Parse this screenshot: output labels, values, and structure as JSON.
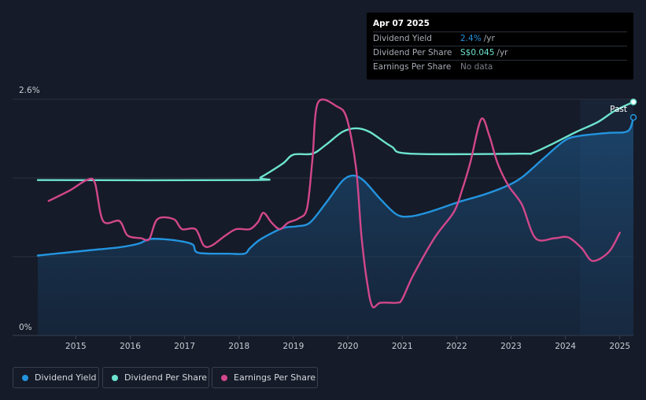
{
  "chart_data": {
    "type": "line",
    "title": "",
    "ylabel": "",
    "xlabel": "",
    "y_axis": {
      "top_label": "2.6%",
      "bottom_label": "0%",
      "ylim": [
        0,
        2.6
      ]
    },
    "x_ticks": [
      "2015",
      "2016",
      "2017",
      "2018",
      "2019",
      "2020",
      "2021",
      "2022",
      "2023",
      "2024",
      "2025"
    ],
    "x_range": [
      2014.3,
      2025.25
    ],
    "past_label": "Past",
    "forecast_region_start": 2024.27,
    "grid": true,
    "legend_position": "bottom-left",
    "series": [
      {
        "name": "Dividend Yield",
        "color": "#2394df",
        "filled": true,
        "unit": "%",
        "x": [
          2014.3,
          2014.8,
          2015.3,
          2015.8,
          2016.15,
          2016.35,
          2016.6,
          2016.9,
          2017.15,
          2017.25,
          2017.8,
          2018.1,
          2018.2,
          2018.4,
          2018.8,
          2019.05,
          2019.3,
          2019.6,
          2019.9,
          2020.1,
          2020.3,
          2020.6,
          2020.9,
          2021.15,
          2021.5,
          2021.9,
          2022.1,
          2022.5,
          2022.9,
          2023.2,
          2023.6,
          2024.0,
          2024.3,
          2024.8,
          2025.15,
          2025.25
        ],
        "y": [
          0.88,
          0.91,
          0.94,
          0.97,
          1.01,
          1.06,
          1.06,
          1.04,
          1.0,
          0.91,
          0.9,
          0.9,
          0.96,
          1.06,
          1.18,
          1.2,
          1.24,
          1.46,
          1.7,
          1.76,
          1.7,
          1.5,
          1.33,
          1.31,
          1.36,
          1.44,
          1.48,
          1.55,
          1.64,
          1.74,
          1.95,
          2.15,
          2.2,
          2.23,
          2.25,
          2.4
        ]
      },
      {
        "name": "Dividend Per Share",
        "color": "#6de3cf",
        "filled": false,
        "unit": "S$",
        "x": [
          2014.3,
          2018.25,
          2018.4,
          2018.8,
          2019.0,
          2019.35,
          2019.6,
          2019.9,
          2020.15,
          2020.4,
          2020.8,
          2021.15,
          2023.15,
          2023.4,
          2023.8,
          2024.2,
          2024.6,
          2024.9,
          2025.25
        ],
        "y": [
          1.71,
          1.71,
          1.74,
          1.89,
          1.99,
          2.0,
          2.1,
          2.24,
          2.28,
          2.24,
          2.08,
          2.0,
          2.0,
          2.01,
          2.12,
          2.24,
          2.35,
          2.47,
          2.57
        ]
      },
      {
        "name": "Earnings Per Share",
        "color": "#d2478b",
        "filled": false,
        "x": [
          2014.5,
          2014.9,
          2015.2,
          2015.35,
          2015.5,
          2015.8,
          2015.95,
          2016.2,
          2016.35,
          2016.5,
          2016.8,
          2016.95,
          2017.2,
          2017.35,
          2017.5,
          2017.75,
          2017.95,
          2018.2,
          2018.35,
          2018.45,
          2018.6,
          2018.75,
          2018.9,
          2019.1,
          2019.25,
          2019.35,
          2019.45,
          2019.8,
          2019.98,
          2020.15,
          2020.25,
          2020.35,
          2020.45,
          2020.6,
          2020.9,
          2021.0,
          2021.2,
          2021.6,
          2021.95,
          2022.1,
          2022.25,
          2022.45,
          2022.6,
          2022.75,
          2022.95,
          2023.2,
          2023.45,
          2023.8,
          2024.05,
          2024.3,
          2024.5,
          2024.8,
          2025.0
        ],
        "y": [
          1.48,
          1.6,
          1.71,
          1.68,
          1.26,
          1.26,
          1.1,
          1.07,
          1.06,
          1.28,
          1.28,
          1.17,
          1.17,
          0.99,
          0.99,
          1.1,
          1.17,
          1.17,
          1.25,
          1.35,
          1.24,
          1.17,
          1.24,
          1.29,
          1.4,
          1.94,
          2.56,
          2.52,
          2.39,
          1.85,
          1.1,
          0.6,
          0.32,
          0.36,
          0.36,
          0.4,
          0.66,
          1.08,
          1.36,
          1.6,
          1.9,
          2.38,
          2.2,
          1.9,
          1.65,
          1.44,
          1.07,
          1.07,
          1.08,
          0.96,
          0.82,
          0.92,
          1.13
        ]
      }
    ]
  },
  "tooltip": {
    "date": "Apr 07 2025",
    "rows": [
      {
        "label": "Dividend Yield",
        "value": "2.4%",
        "unit": "/yr",
        "value_color": "#2394df"
      },
      {
        "label": "Dividend Per Share",
        "value": "S$0.045",
        "unit": "/yr",
        "value_color": "#6de3cf"
      },
      {
        "label": "Earnings Per Share",
        "value": "No data",
        "unit": "",
        "value_color": "#7b7f88"
      }
    ]
  },
  "legend": [
    {
      "label": "Dividend Yield",
      "color": "#2394df"
    },
    {
      "label": "Dividend Per Share",
      "color": "#6de3cf"
    },
    {
      "label": "Earnings Per Share",
      "color": "#d2478b"
    }
  ]
}
